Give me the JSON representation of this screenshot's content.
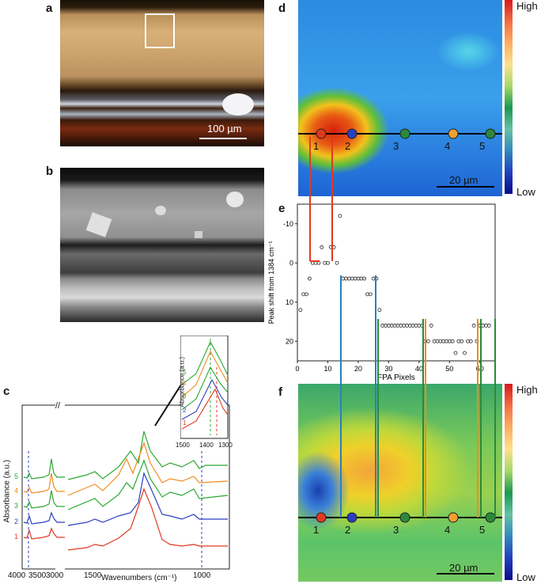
{
  "panels": {
    "a": {
      "label": "a",
      "scale": "100 µm"
    },
    "b": {
      "label": "b"
    },
    "c": {
      "label": "c",
      "ylabel": "Absorbance (a.u.)",
      "xlabel": "Wavenumbers (cm⁻¹)",
      "xticks": [
        "4000",
        "3500",
        "3000",
        "1500",
        "1000"
      ],
      "break_mark": "//",
      "curve_labels": [
        "5",
        "4",
        "3",
        "2",
        "1"
      ],
      "inset": {
        "ylabel": "Absorbance (a.u.)",
        "xticks": [
          "1500",
          "1400",
          "1300"
        ],
        "curve_labels": [
          "5",
          "4",
          "3",
          "2",
          "1"
        ]
      }
    },
    "d": {
      "label": "d",
      "scale": "20 µm",
      "high": "High",
      "low": "Low",
      "points": [
        "1",
        "2",
        "3",
        "4",
        "5"
      ]
    },
    "e": {
      "label": "e"
    },
    "f": {
      "label": "f",
      "scale": "20 µm",
      "high": "High",
      "low": "Low",
      "points": [
        "1",
        "2",
        "3",
        "4",
        "5"
      ]
    }
  },
  "colors": {
    "red": "#e03a1e",
    "blue": "#2a3fbf",
    "green": "#2a8a3a",
    "orange": "#f08c1e",
    "teal_line": "#2a7fbf"
  },
  "chart_data": [
    {
      "type": "scatter",
      "panel": "e",
      "xlabel": "FPA Pixels",
      "ylabel": "Peak shift from 1384 cm⁻¹",
      "xlim": [
        0,
        65
      ],
      "ylim": [
        25,
        -15
      ],
      "xticks": [
        0,
        10,
        20,
        30,
        40,
        50,
        60
      ],
      "yticks": [
        -10,
        0,
        10,
        20
      ],
      "x": [
        1,
        2,
        3,
        4,
        5,
        6,
        7,
        8,
        9,
        10,
        11,
        12,
        13,
        14,
        15,
        16,
        17,
        18,
        19,
        20,
        21,
        22,
        23,
        24,
        25,
        26,
        27,
        28,
        29,
        30,
        31,
        32,
        33,
        34,
        35,
        36,
        37,
        38,
        39,
        40,
        41,
        42,
        43,
        44,
        45,
        46,
        47,
        48,
        49,
        50,
        51,
        52,
        53,
        54,
        55,
        56,
        57,
        58,
        59,
        60,
        61,
        62,
        63
      ],
      "y": [
        12,
        8,
        8,
        4,
        0,
        0,
        0,
        -4,
        0,
        0,
        -4,
        -4,
        0,
        -12,
        4,
        4,
        4,
        4,
        4,
        4,
        4,
        4,
        8,
        8,
        4,
        4,
        12,
        16,
        16,
        16,
        16,
        16,
        16,
        16,
        16,
        16,
        16,
        16,
        16,
        16,
        16,
        20,
        20,
        16,
        20,
        20,
        20,
        20,
        20,
        20,
        20,
        23,
        20,
        20,
        23,
        20,
        20,
        16,
        20,
        16,
        16,
        16,
        16
      ]
    }
  ]
}
